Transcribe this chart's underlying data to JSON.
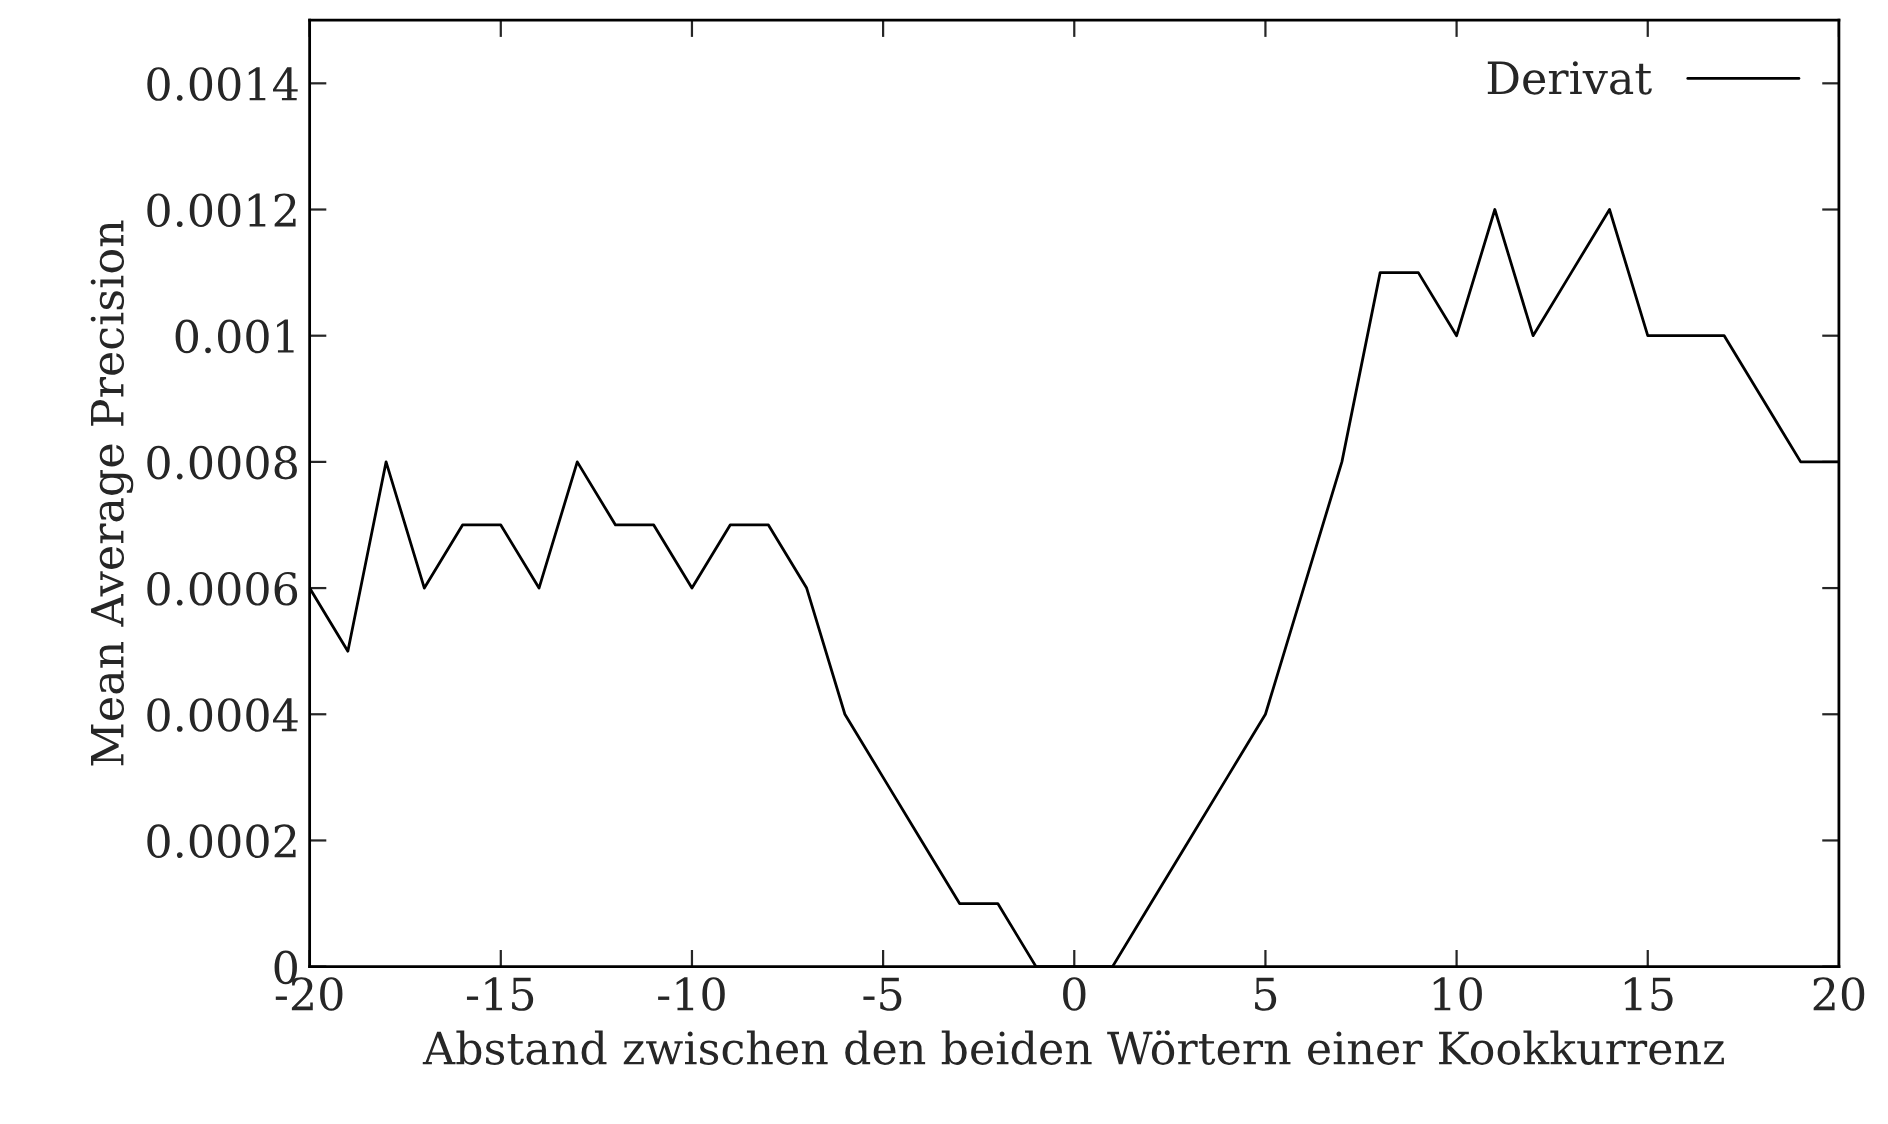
{
  "chart_data": {
    "type": "line",
    "xlabel": "Abstand zwischen den beiden Wörtern einer Kookkurrenz",
    "ylabel": "Mean Average Precision",
    "x": [
      -20,
      -19,
      -18,
      -17,
      -16,
      -15,
      -14,
      -13,
      -12,
      -11,
      -10,
      -9,
      -8,
      -7,
      -6,
      -5,
      -4,
      -3,
      -2,
      -1,
      0,
      1,
      2,
      3,
      4,
      5,
      6,
      7,
      8,
      9,
      10,
      11,
      12,
      13,
      14,
      15,
      16,
      17,
      18,
      19,
      20
    ],
    "series": [
      {
        "name": "Derivat",
        "color": "#000000",
        "values": [
          0.0006,
          0.0005,
          0.0008,
          0.0006,
          0.0007,
          0.0007,
          0.0006,
          0.0008,
          0.0007,
          0.0007,
          0.0006,
          0.0007,
          0.0007,
          0.0006,
          0.0004,
          0.0003,
          0.0002,
          0.0001,
          0.0001,
          0,
          0,
          0,
          0.0001,
          0.0002,
          0.0003,
          0.0004,
          0.0006,
          0.0008,
          0.0011,
          0.0011,
          0.001,
          0.0012,
          0.001,
          0.0011,
          0.0012,
          0.001,
          0.001,
          0.001,
          0.0009,
          0.0008,
          0.0008
        ]
      }
    ],
    "xlim": [
      -20,
      20
    ],
    "xticks": [
      -20,
      -15,
      -10,
      -5,
      0,
      5,
      10,
      15,
      20
    ],
    "ylim": [
      0,
      0.0015
    ],
    "yticks": [
      0,
      0.0002,
      0.0004,
      0.0006,
      0.0008,
      0.001,
      0.0012,
      0.0014
    ],
    "legend": "top right",
    "grid": false,
    "marker": "none",
    "line_style": "solid"
  }
}
